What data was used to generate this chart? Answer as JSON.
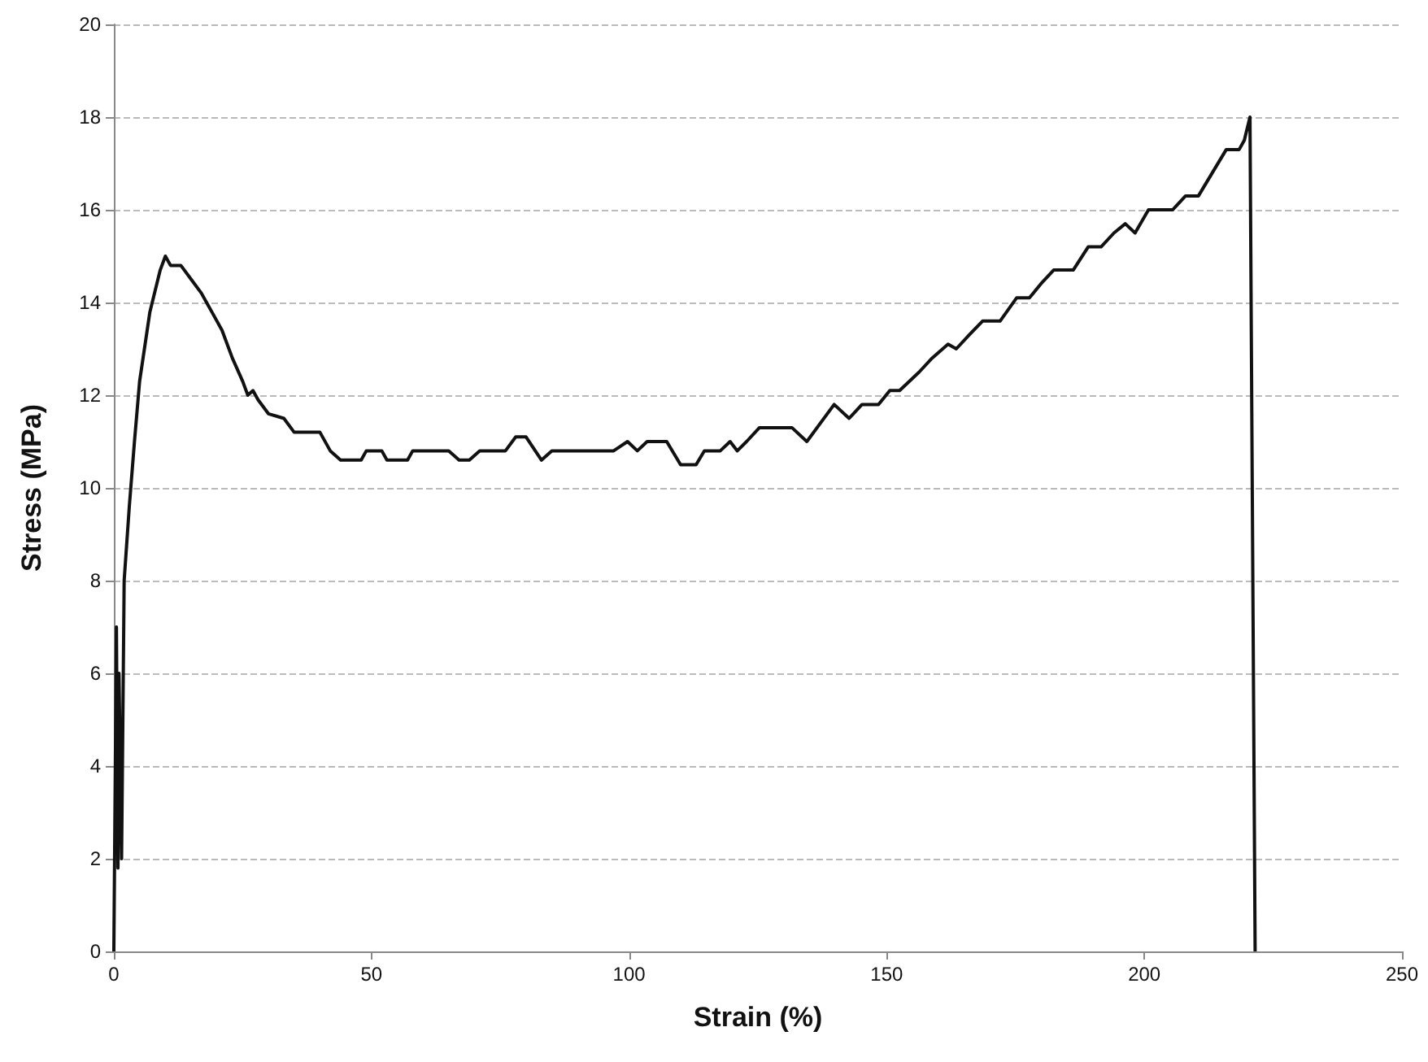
{
  "chart_data": {
    "type": "line",
    "xlabel": "Strain (%)",
    "ylabel": "Stress (MPa)",
    "xlim": [
      0,
      250
    ],
    "xticks": [
      0,
      50,
      100,
      150,
      200,
      250
    ],
    "ylim": [
      0,
      20
    ],
    "yticks": [
      0,
      2,
      4,
      6,
      8,
      10,
      12,
      14,
      16,
      18,
      20
    ],
    "grid": "y",
    "marker": "none",
    "line_style": "solid",
    "series": [
      {
        "color": "#111111",
        "x": [
          0,
          0.5,
          0.8,
          1,
          1.5,
          2,
          3,
          4,
          5,
          7,
          9,
          10,
          11,
          13,
          15,
          17,
          19,
          21,
          23,
          25,
          26,
          27,
          28,
          30,
          33,
          35,
          40,
          42,
          44,
          48,
          49,
          52,
          53,
          57,
          58,
          65,
          67,
          69,
          71,
          76,
          78,
          80,
          83,
          85,
          97,
          99.7,
          101.6,
          103.5,
          107.3,
          110,
          113,
          114.6,
          117.7,
          119.6,
          121,
          122.8,
          125.3,
          131.6,
          134.5,
          139.8,
          142.7,
          145.2,
          148.4,
          150.6,
          152.5,
          156.3,
          158.8,
          161.9,
          163.5,
          166,
          168.6,
          172,
          175.2,
          177.7,
          179.9,
          182.4,
          186.2,
          189.1,
          191.6,
          194.1,
          196.3,
          198.2,
          200.8,
          205.5,
          208,
          210.5,
          215.9,
          218.4,
          219.4,
          220.5,
          221.5
        ],
        "values": [
          0,
          7,
          1.8,
          6,
          2,
          8,
          9.6,
          11,
          12.3,
          13.8,
          14.7,
          15,
          14.8,
          14.8,
          14.5,
          14.2,
          13.8,
          13.4,
          12.8,
          12.3,
          12,
          12.1,
          11.9,
          11.6,
          11.5,
          11.2,
          11.2,
          10.8,
          10.6,
          10.6,
          10.8,
          10.8,
          10.6,
          10.6,
          10.8,
          10.8,
          10.6,
          10.6,
          10.8,
          10.8,
          11.1,
          11.1,
          10.6,
          10.8,
          10.8,
          11,
          10.8,
          11,
          11,
          10.5,
          10.5,
          10.8,
          10.8,
          11,
          10.8,
          11,
          11.3,
          11.3,
          11,
          11.8,
          11.5,
          11.8,
          11.8,
          12.1,
          12.1,
          12.5,
          12.8,
          13.1,
          13,
          13.3,
          13.6,
          13.6,
          14.1,
          14.1,
          14.4,
          14.7,
          14.7,
          15.2,
          15.2,
          15.5,
          15.7,
          15.5,
          16,
          16,
          16.3,
          16.3,
          17.3,
          17.3,
          17.5,
          18,
          0
        ]
      }
    ]
  }
}
